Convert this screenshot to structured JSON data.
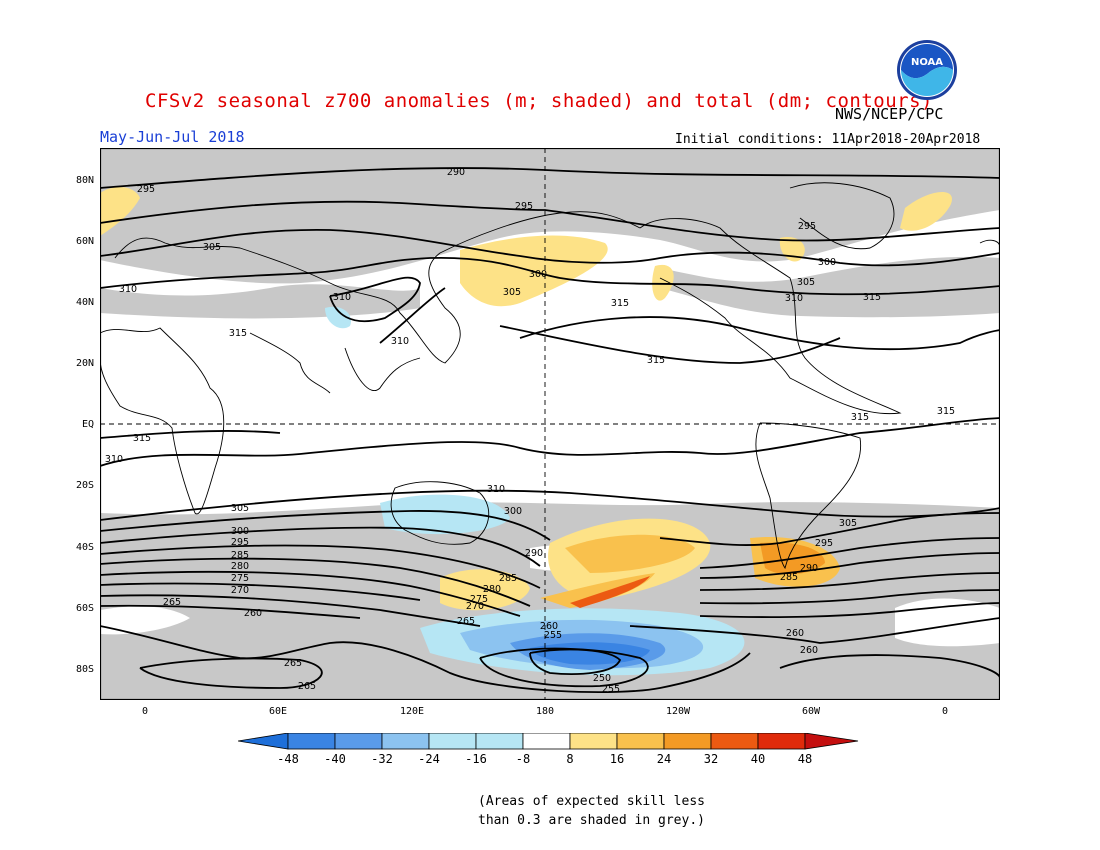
{
  "header": {
    "title": "CFSv2 seasonal z700 anomalies (m; shaded) and total (dm; contours)",
    "agency": "NWS/NCEP/CPC",
    "period": "May-Jun-Jul 2018",
    "initial_conditions": "Initial conditions: 11Apr2018-20Apr2018",
    "logo_text": "NOAA"
  },
  "map": {
    "lat_labels": [
      "80N",
      "60N",
      "40N",
      "20N",
      "EQ",
      "20S",
      "40S",
      "60S",
      "80S"
    ],
    "lon_labels": [
      "0",
      "60E",
      "120E",
      "180",
      "120W",
      "60W",
      "0"
    ],
    "contour_labels": [
      "290",
      "295",
      "295",
      "295",
      "300",
      "300",
      "305",
      "305",
      "305",
      "310",
      "310",
      "310",
      "310",
      "315",
      "315",
      "315",
      "315",
      "315",
      "315",
      "315",
      "310",
      "310",
      "305",
      "305",
      "300",
      "300",
      "295",
      "295",
      "290",
      "290",
      "285",
      "285",
      "285",
      "280",
      "280",
      "275",
      "275",
      "270",
      "270",
      "265",
      "265",
      "265",
      "265",
      "260",
      "260",
      "260",
      "255",
      "255",
      "250",
      "260"
    ],
    "shading_note": "grey = skill < 0.3"
  },
  "colorbar": {
    "labels": [
      "-48",
      "-40",
      "-32",
      "-24",
      "-16",
      "-8",
      "8",
      "16",
      "24",
      "32",
      "40",
      "48"
    ],
    "colors": [
      "#1e6fd9",
      "#3a84e3",
      "#5a9be9",
      "#8cc3f0",
      "#b6e6f4",
      "#ffffff",
      "#fde287",
      "#f9c14d",
      "#f39a24",
      "#ec5a12",
      "#e02b0b",
      "#c40f0f"
    ],
    "left_arrow_color": "#1e6fd9",
    "right_arrow_color": "#c40f0f"
  },
  "footnote": {
    "line1": "(Areas of expected skill less",
    "line2": "than 0.3 are shaded in grey.)"
  }
}
